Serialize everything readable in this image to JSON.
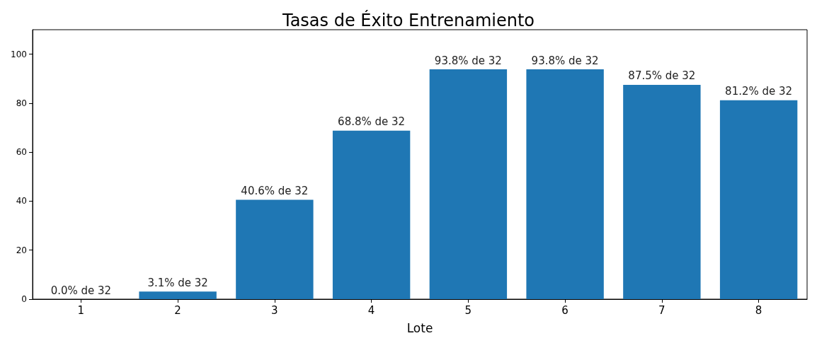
{
  "chart_data": {
    "type": "bar",
    "title": "Tasas de Éxito Entrenamiento",
    "xlabel": "Lote",
    "categories": [
      "1",
      "2",
      "3",
      "4",
      "5",
      "6",
      "7",
      "8"
    ],
    "values": [
      0,
      3.1,
      40.6,
      68.8,
      93.8,
      93.8,
      87.5,
      81.2
    ],
    "value_labels": [
      "0.0% de 32",
      "3.1% de 32",
      "40.6% de 32",
      "68.8% de 32",
      "93.8% de 32",
      "93.8% de 32",
      "87.5% de 32",
      "81.2% de 32"
    ],
    "color": "#1f77b4",
    "ylim": [
      0,
      110
    ],
    "yticks": [
      0,
      20,
      40,
      60,
      80,
      100
    ],
    "grid": false
  }
}
